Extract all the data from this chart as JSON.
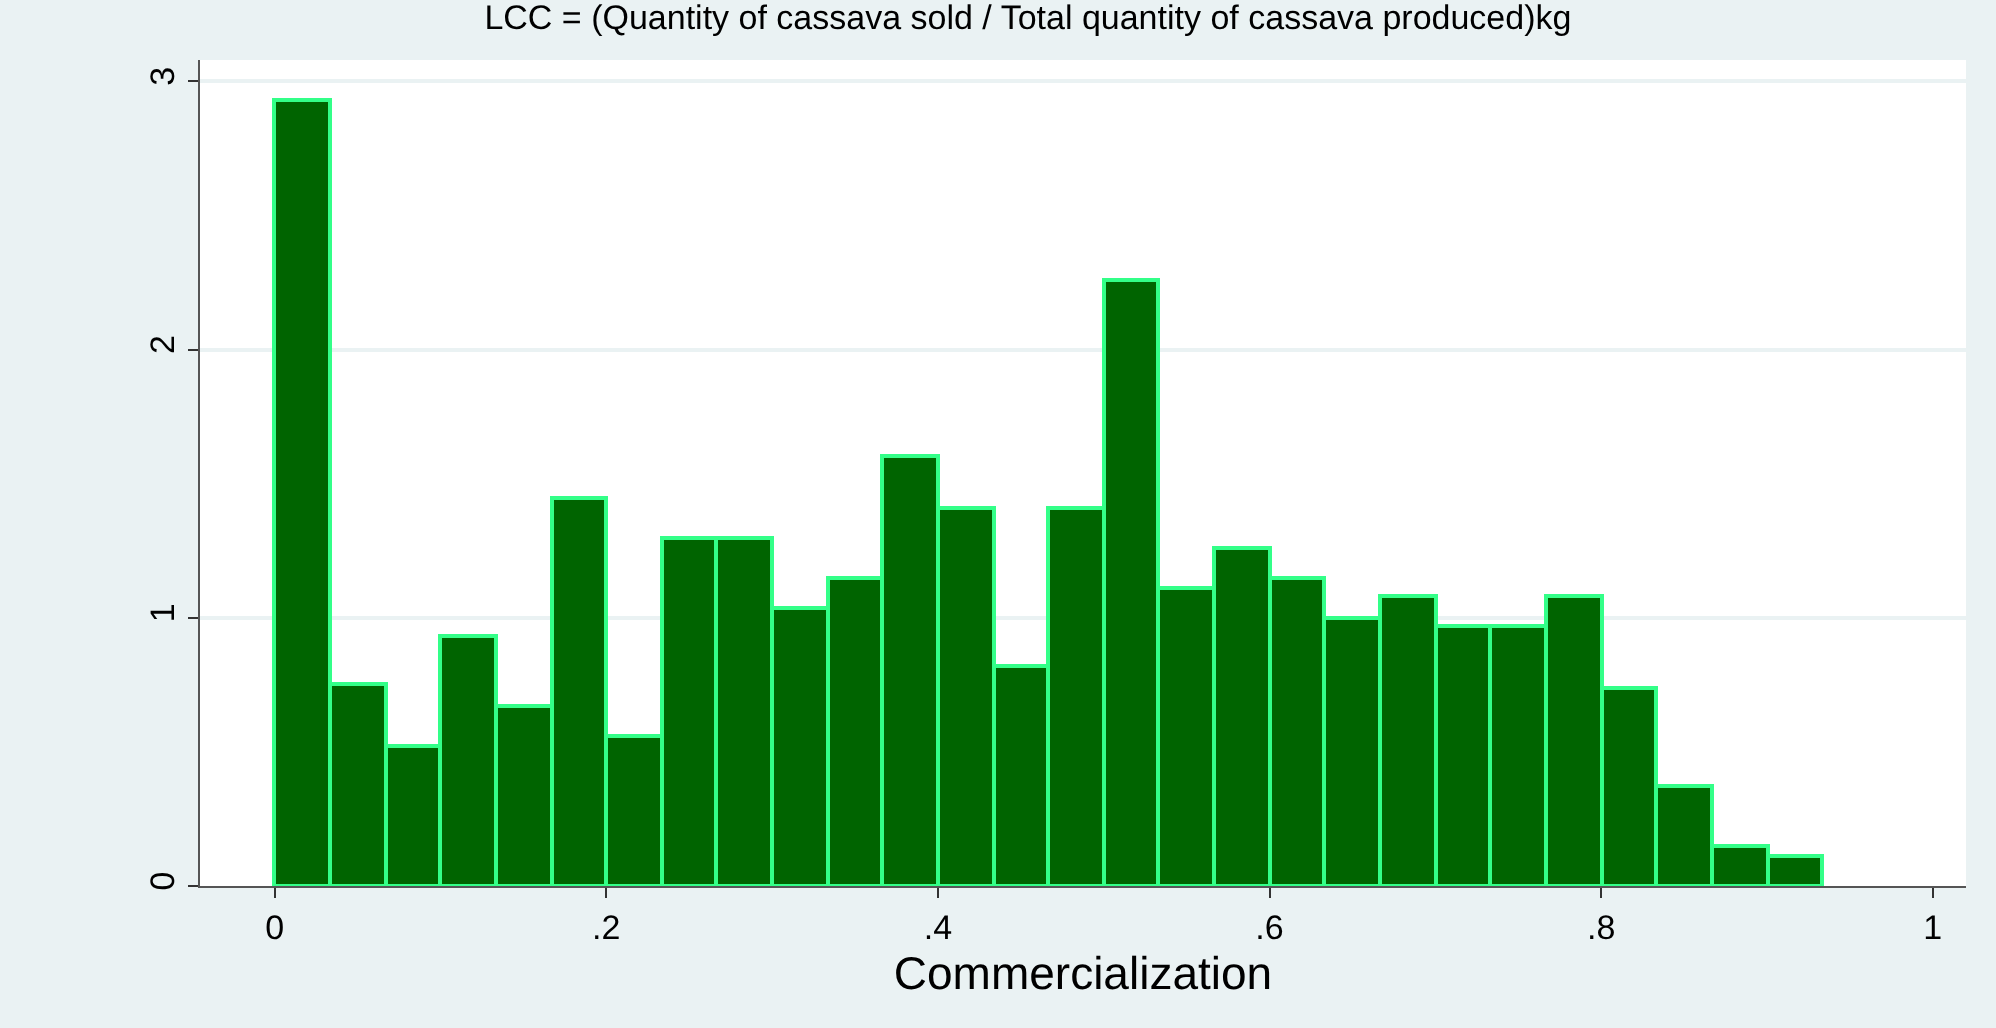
{
  "chart_data": {
    "type": "histogram",
    "title": "LCC = (Quantity of cassava sold / Total quantity of cassava produced)kg",
    "xlabel": "Commercialization",
    "bins": [
      0,
      0.0333,
      0.0667,
      0.1,
      0.1333,
      0.1667,
      0.2,
      0.2333,
      0.2667,
      0.3,
      0.3333,
      0.3667,
      0.4,
      0.4333,
      0.4667,
      0.5,
      0.5333,
      0.5667,
      0.6,
      0.6333,
      0.6667,
      0.7,
      0.7333,
      0.7667,
      0.8,
      0.8333,
      0.8667,
      0.9,
      0.9333
    ],
    "values": [
      2.93,
      0.75,
      0.52,
      0.93,
      0.67,
      1.45,
      0.56,
      1.3,
      1.3,
      1.04,
      1.15,
      1.6,
      1.41,
      0.82,
      1.41,
      2.26,
      1.11,
      1.26,
      1.15,
      1.0,
      1.08,
      0.97,
      0.97,
      1.08,
      0.74,
      0.37,
      0.15,
      0.11
    ],
    "color": "#006400",
    "xlim": [
      -0.045,
      1.02
    ],
    "ylim": [
      0,
      3.08
    ],
    "xticks": [
      {
        "value": 0,
        "label": "0"
      },
      {
        "value": 0.2,
        "label": ".2"
      },
      {
        "value": 0.4,
        "label": ".4"
      },
      {
        "value": 0.6,
        "label": ".6"
      },
      {
        "value": 0.8,
        "label": ".8"
      },
      {
        "value": 1,
        "label": "1"
      }
    ],
    "yticks": [
      0,
      1,
      2,
      3
    ],
    "grid": "y"
  }
}
